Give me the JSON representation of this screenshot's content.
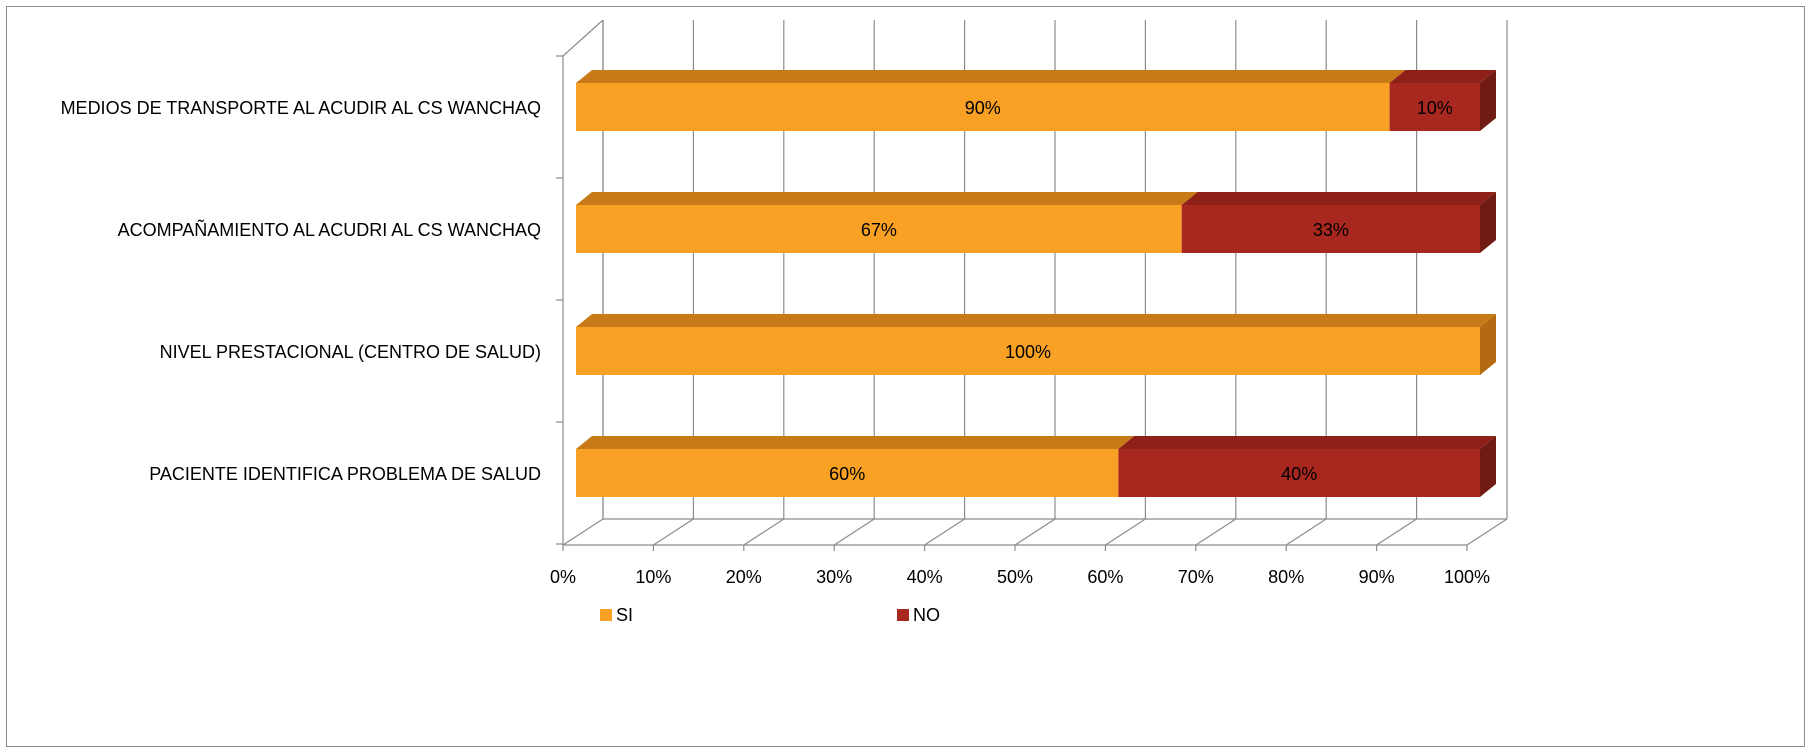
{
  "chart_data": {
    "type": "bar",
    "orientation": "horizontal",
    "stacked": "100%",
    "three_d": true,
    "categories": [
      "MEDIOS DE TRANSPORTE AL ACUDIR AL CS WANCHAQ",
      "ACOMPAÑAMIENTO AL ACUDRI AL CS WANCHAQ",
      "NIVEL PRESTACIONAL (CENTRO DE SALUD)",
      "PACIENTE IDENTIFICA PROBLEMA DE SALUD"
    ],
    "series": [
      {
        "name": "SI",
        "values": [
          90,
          67,
          100,
          60
        ],
        "labels": [
          "90%",
          "67%",
          "100%",
          "60%"
        ],
        "color": "#F9A124",
        "top_color": "#C97A18",
        "side_color": "#B36A10"
      },
      {
        "name": "NO",
        "values": [
          10,
          33,
          0,
          40
        ],
        "labels": [
          "10%",
          "33%",
          "",
          "40%"
        ],
        "color": "#A8271E",
        "top_color": "#8E2017",
        "side_color": "#701B14"
      }
    ],
    "x_ticks": [
      "0%",
      "10%",
      "20%",
      "30%",
      "40%",
      "50%",
      "60%",
      "70%",
      "80%",
      "90%",
      "100%"
    ],
    "xlim": [
      0,
      100
    ],
    "grid": true,
    "legend_position": "bottom-left",
    "title": "",
    "xlabel": "",
    "ylabel": ""
  }
}
